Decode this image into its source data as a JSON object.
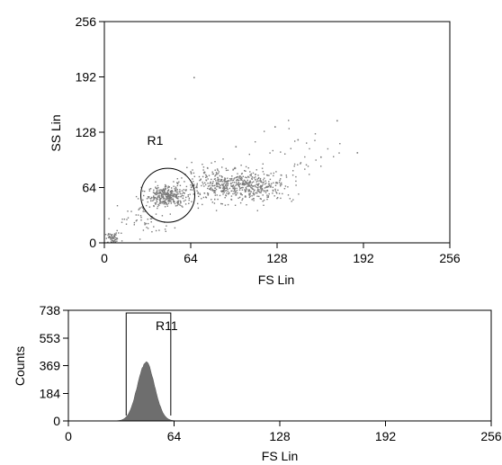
{
  "chart_data": [
    {
      "type": "scatter",
      "xlabel": "FS Lin",
      "ylabel": "SS Lin",
      "xlim": [
        0,
        256
      ],
      "ylim": [
        0,
        256
      ],
      "x_ticks": [
        0,
        64,
        128,
        192,
        256
      ],
      "y_ticks": [
        0,
        64,
        128,
        192,
        256
      ],
      "grid": false,
      "point_color": "#7a7a7a",
      "populations": [
        {
          "center": [
            6,
            6
          ],
          "spread": [
            3,
            3
          ],
          "count": 60
        },
        {
          "center": [
            46,
            55
          ],
          "spread": [
            7,
            6
          ],
          "count": 320
        },
        {
          "center": [
            88,
            68
          ],
          "spread": [
            16,
            9
          ],
          "count": 380
        },
        {
          "center": [
            112,
            65
          ],
          "spread": [
            14,
            8
          ],
          "count": 220
        },
        {
          "center": [
            30,
            28
          ],
          "spread": [
            10,
            10
          ],
          "count": 60
        },
        {
          "center": [
            140,
            95
          ],
          "spread": [
            22,
            18
          ],
          "count": 45
        }
      ],
      "outlier_points": [
        {
          "x": 66,
          "y": 192
        },
        {
          "x": 126,
          "y": 135
        },
        {
          "x": 172,
          "y": 142
        },
        {
          "x": 187,
          "y": 105
        },
        {
          "x": 143,
          "y": 120
        },
        {
          "x": 97,
          "y": 112
        },
        {
          "x": 52,
          "y": 98
        },
        {
          "x": 160,
          "y": 100
        }
      ],
      "gates": [
        {
          "name": "R1",
          "shape": "circle",
          "center": [
            47,
            55
          ],
          "radius_data": 20
        }
      ]
    },
    {
      "type": "histogram",
      "xlabel": "FS Lin",
      "ylabel": "Counts",
      "xlim": [
        0,
        256
      ],
      "ylim": [
        0,
        738
      ],
      "x_ticks": [
        0,
        64,
        128,
        192,
        256
      ],
      "y_ticks": [
        0,
        184,
        369,
        553,
        738
      ],
      "fill_color": "#6e6e6e",
      "peak": {
        "mean": 47,
        "sd": 5.2,
        "max_count": 390
      },
      "gates": [
        {
          "name": "R11",
          "shape": "range",
          "range": [
            35,
            62
          ]
        }
      ]
    }
  ]
}
